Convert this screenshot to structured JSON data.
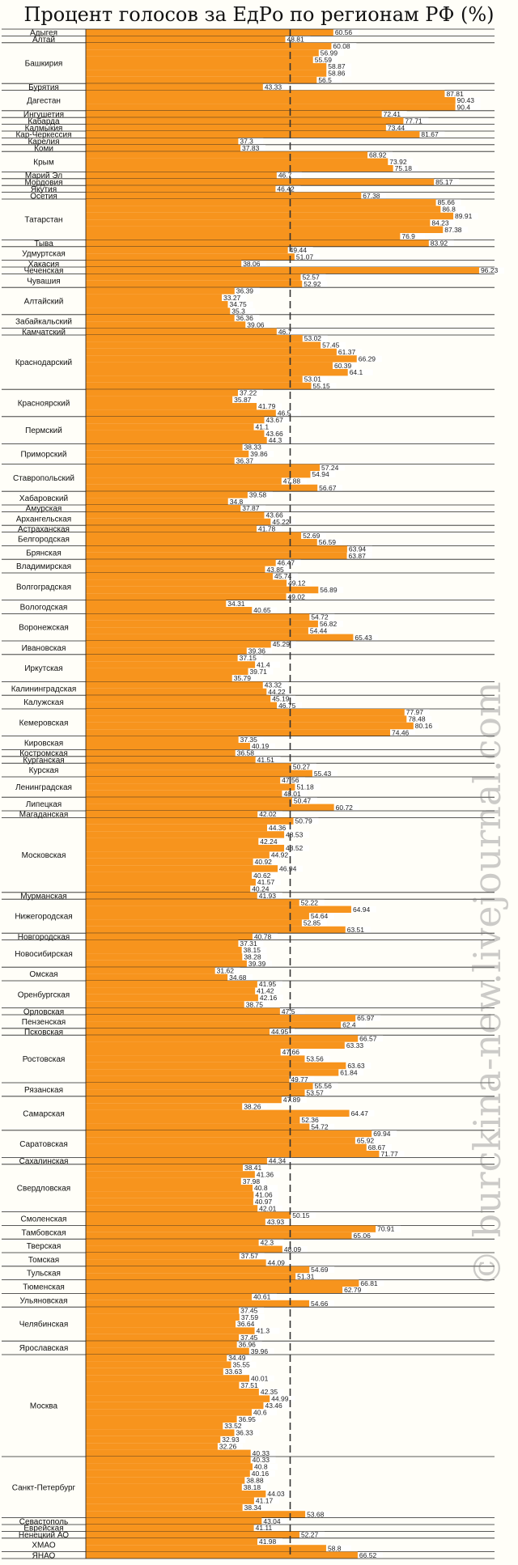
{
  "title": "Процент голосов за ЕдРо по регионам РФ (%)",
  "watermark": "© burckina-new.livejournal.com",
  "colors": {
    "bar": "#F7941D",
    "reference_line": "#333333",
    "grid": "#222222"
  },
  "chart_data": {
    "type": "bar",
    "orientation": "horizontal",
    "xlim": [
      0,
      100
    ],
    "reference_line": 50,
    "groups": [
      {
        "name": "Адыгея",
        "values": [
          60.56
        ]
      },
      {
        "name": "Алтай",
        "values": [
          48.81
        ]
      },
      {
        "name": "Башкирия",
        "values": [
          60.08,
          56.99,
          55.59,
          58.87,
          58.86,
          56.5
        ]
      },
      {
        "name": "Бурятия",
        "values": [
          43.33
        ]
      },
      {
        "name": "Дагестан",
        "values": [
          87.81,
          90.43,
          90.4
        ]
      },
      {
        "name": "Ингушетия",
        "values": [
          72.41
        ]
      },
      {
        "name": "Кабарда",
        "values": [
          77.71
        ]
      },
      {
        "name": "Калмыкия",
        "values": [
          73.44
        ]
      },
      {
        "name": "Кар-Черкессия",
        "values": [
          81.67
        ]
      },
      {
        "name": "Карелия",
        "values": [
          37.3
        ]
      },
      {
        "name": "Коми",
        "values": [
          37.83
        ]
      },
      {
        "name": "Крым",
        "values": [
          68.92,
          73.92,
          75.18
        ]
      },
      {
        "name": "Марий Эл",
        "values": [
          46.7
        ]
      },
      {
        "name": "Мордовия",
        "values": [
          85.17
        ]
      },
      {
        "name": "Якутия",
        "values": [
          46.42
        ]
      },
      {
        "name": "Осетия",
        "values": [
          67.38
        ]
      },
      {
        "name": "Татарстан",
        "values": [
          85.66,
          86.8,
          89.91,
          84.23,
          87.38,
          76.9
        ]
      },
      {
        "name": "Тыва",
        "values": [
          83.92
        ]
      },
      {
        "name": "Удмуртская",
        "values": [
          49.44,
          51.07
        ]
      },
      {
        "name": "Хакасия",
        "values": [
          38.06
        ]
      },
      {
        "name": "Чеченская",
        "values": [
          96.23
        ]
      },
      {
        "name": "Чувашия",
        "values": [
          52.57,
          52.92
        ]
      },
      {
        "name": "Алтайский",
        "values": [
          36.39,
          33.27,
          34.75,
          35.3
        ]
      },
      {
        "name": "Забайкальский",
        "values": [
          36.36,
          39.06
        ]
      },
      {
        "name": "Камчатский",
        "values": [
          46.7
        ]
      },
      {
        "name": "Краснодарский",
        "values": [
          53.02,
          57.45,
          61.37,
          66.29,
          60.39,
          64.1,
          53.01,
          55.15
        ]
      },
      {
        "name": "Красноярский",
        "values": [
          37.22,
          35.87,
          41.79,
          46.5
        ]
      },
      {
        "name": "Пермский",
        "values": [
          43.67,
          41.1,
          43.66,
          44.3
        ]
      },
      {
        "name": "Приморский",
        "values": [
          38.33,
          39.86,
          36.37
        ]
      },
      {
        "name": "Ставропольский",
        "values": [
          57.24,
          54.94,
          47.88,
          56.67
        ]
      },
      {
        "name": "Хабаровский",
        "values": [
          39.58,
          34.8
        ]
      },
      {
        "name": "Амурская",
        "values": [
          37.87
        ]
      },
      {
        "name": "Архангельская",
        "values": [
          43.66,
          45.22
        ]
      },
      {
        "name": "Астраханская",
        "values": [
          41.78
        ]
      },
      {
        "name": "Белгородская",
        "values": [
          52.69,
          56.59
        ]
      },
      {
        "name": "Брянская",
        "values": [
          63.94,
          63.87
        ]
      },
      {
        "name": "Владимирская",
        "values": [
          46.47,
          43.85
        ]
      },
      {
        "name": "Волгоградская",
        "values": [
          45.74,
          49.12,
          56.89,
          49.02
        ]
      },
      {
        "name": "Вологодская",
        "values": [
          34.31,
          40.65
        ]
      },
      {
        "name": "Воронежская",
        "values": [
          54.72,
          56.82,
          54.44,
          65.43
        ]
      },
      {
        "name": "Ивановская",
        "values": [
          45.29,
          39.36
        ]
      },
      {
        "name": "Иркутская",
        "values": [
          37.15,
          41.4,
          39.71,
          35.79
        ]
      },
      {
        "name": "Калининградская",
        "values": [
          43.32,
          44.22
        ]
      },
      {
        "name": "Калужская",
        "values": [
          45.19,
          46.75
        ]
      },
      {
        "name": "Кемеровская",
        "values": [
          77.97,
          78.48,
          80.16,
          74.46
        ]
      },
      {
        "name": "Кировская",
        "values": [
          37.35,
          40.19
        ]
      },
      {
        "name": "Костромская",
        "values": [
          36.58
        ]
      },
      {
        "name": "Курганская",
        "values": [
          41.51
        ]
      },
      {
        "name": "Курская",
        "values": [
          50.27,
          55.43
        ]
      },
      {
        "name": "Ленинградская",
        "values": [
          47.56,
          51.18,
          48.01
        ]
      },
      {
        "name": "Липецкая",
        "values": [
          50.47,
          60.72
        ]
      },
      {
        "name": "Магаданская",
        "values": [
          42.02
        ]
      },
      {
        "name": "Московская",
        "values": [
          50.79,
          44.36,
          48.53,
          42.24,
          48.52,
          44.92,
          40.92,
          46.94,
          40.62,
          41.57,
          40.24
        ]
      },
      {
        "name": "Мурманская",
        "values": [
          41.93
        ]
      },
      {
        "name": "Нижегородская",
        "values": [
          52.22,
          64.94,
          54.64,
          52.85,
          63.51
        ]
      },
      {
        "name": "Новгородская",
        "values": [
          40.78
        ]
      },
      {
        "name": "Новосибирская",
        "values": [
          37.31,
          38.15,
          38.28,
          39.39
        ]
      },
      {
        "name": "Омская",
        "values": [
          31.62,
          34.68
        ]
      },
      {
        "name": "Оренбургская",
        "values": [
          41.95,
          41.42,
          42.16,
          38.75
        ]
      },
      {
        "name": "Орловская",
        "values": [
          47.5
        ]
      },
      {
        "name": "Пензенская",
        "values": [
          65.97,
          62.4
        ]
      },
      {
        "name": "Псковская",
        "values": [
          44.95
        ]
      },
      {
        "name": "Ростовская",
        "values": [
          66.57,
          63.33,
          47.66,
          53.56,
          63.63,
          61.84,
          49.77
        ]
      },
      {
        "name": "Рязанская",
        "values": [
          55.56,
          53.57
        ]
      },
      {
        "name": "Самарская",
        "values": [
          47.89,
          38.26,
          64.47,
          52.36,
          54.72
        ]
      },
      {
        "name": "Саратовская",
        "values": [
          69.94,
          65.92,
          68.67,
          71.77
        ]
      },
      {
        "name": "Сахалинская",
        "values": [
          44.34
        ]
      },
      {
        "name": "Свердловская",
        "values": [
          38.41,
          41.36,
          37.98,
          40.8,
          41.06,
          40.97,
          42.01
        ]
      },
      {
        "name": "Смоленская",
        "values": [
          50.15,
          43.93
        ]
      },
      {
        "name": "Тамбовская",
        "values": [
          70.91,
          65.06
        ]
      },
      {
        "name": "Тверская",
        "values": [
          42.3,
          48.09
        ]
      },
      {
        "name": "Томская",
        "values": [
          37.57,
          44.09
        ]
      },
      {
        "name": "Тульская",
        "values": [
          54.69,
          51.31
        ]
      },
      {
        "name": "Тюменская",
        "values": [
          66.81,
          62.79
        ]
      },
      {
        "name": "Ульяновская",
        "values": [
          40.61,
          54.66
        ]
      },
      {
        "name": "Челябинская",
        "values": [
          37.45,
          37.59,
          36.64,
          41.3,
          37.45
        ]
      },
      {
        "name": "Ярославская",
        "values": [
          36.96,
          39.96
        ]
      },
      {
        "name": "Москва",
        "values": [
          34.49,
          35.55,
          33.63,
          40.01,
          37.51,
          42.35,
          44.99,
          43.46,
          40.6,
          36.95,
          33.52,
          36.33,
          32.93,
          32.26,
          40.33
        ]
      },
      {
        "name": "Санкт-Петербург",
        "values": [
          40.33,
          40.8,
          40.16,
          38.88,
          38.18,
          44.03,
          41.17,
          38.34,
          53.68
        ]
      },
      {
        "name": "Севастополь",
        "values": [
          43.04
        ]
      },
      {
        "name": "Еврейская",
        "values": [
          41.11
        ]
      },
      {
        "name": "Ненецкий АО",
        "values": [
          52.27
        ]
      },
      {
        "name": "ХМАО",
        "values": [
          41.98,
          58.8
        ]
      },
      {
        "name": "ЯНАО",
        "values": [
          66.52
        ]
      }
    ]
  }
}
